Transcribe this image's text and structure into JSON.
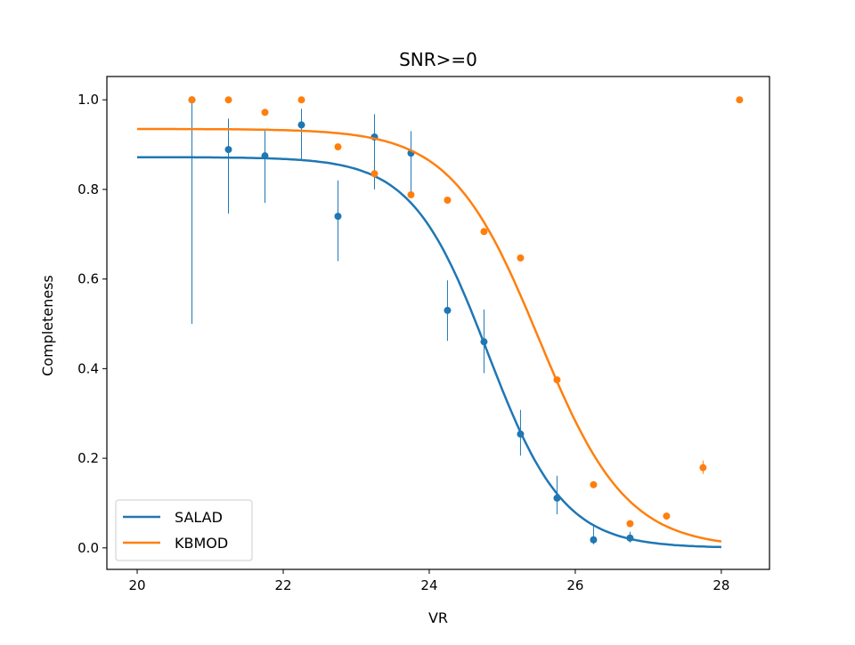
{
  "chart_data": {
    "type": "scatter",
    "title": "SNR>=0",
    "xlabel": "VR",
    "ylabel": "Completeness",
    "xlim": [
      19.585,
      28.66
    ],
    "ylim": [
      -0.048,
      1.052
    ],
    "xticks": [
      20,
      22,
      24,
      26,
      28
    ],
    "xtick_labels": [
      "20",
      "22",
      "24",
      "26",
      "28"
    ],
    "yticks": [
      0.0,
      0.2,
      0.4,
      0.6,
      0.8,
      1.0
    ],
    "ytick_labels": [
      "0.0",
      "0.2",
      "0.4",
      "0.6",
      "0.8",
      "1.0"
    ],
    "legend": {
      "placement": "lower-left",
      "entries": [
        "SALAD",
        "KBMOD"
      ]
    },
    "grid": false,
    "series": [
      {
        "name": "SALAD",
        "color": "#1f77b4",
        "x": [
          20.75,
          21.25,
          21.75,
          22.25,
          22.75,
          23.25,
          23.75,
          24.25,
          24.75,
          25.25,
          25.75,
          26.25,
          26.75
        ],
        "y": [
          1.0,
          0.889,
          0.875,
          0.944,
          0.74,
          0.917,
          0.881,
          0.53,
          0.46,
          0.254,
          0.111,
          0.018,
          0.022
        ],
        "err_low": [
          0.5,
          0.746,
          0.77,
          0.865,
          0.64,
          0.8,
          0.796,
          0.462,
          0.39,
          0.206,
          0.075,
          0.008,
          0.012
        ],
        "err_high": [
          1.0,
          0.958,
          0.935,
          0.98,
          0.82,
          0.968,
          0.93,
          0.597,
          0.532,
          0.308,
          0.161,
          0.048,
          0.036
        ],
        "fit": {
          "model": "logistic",
          "amplitude": 0.872,
          "midpoint": 24.8,
          "width": 0.52,
          "x_range": [
            20,
            28
          ]
        }
      },
      {
        "name": "KBMOD",
        "color": "#ff7f0e",
        "x": [
          20.75,
          21.25,
          21.75,
          22.25,
          22.75,
          23.25,
          23.75,
          24.25,
          24.75,
          25.25,
          25.75,
          26.25,
          26.75,
          27.25,
          27.75,
          28.25
        ],
        "y": [
          1.0,
          1.0,
          0.972,
          1.0,
          0.895,
          0.835,
          0.788,
          0.776,
          0.706,
          0.647,
          0.375,
          0.141,
          0.054,
          0.071,
          0.179,
          1.0
        ],
        "err_low": [
          1.0,
          1.0,
          0.972,
          1.0,
          0.895,
          0.835,
          0.788,
          0.776,
          0.706,
          0.647,
          0.375,
          0.141,
          0.054,
          0.071,
          0.165,
          1.0
        ],
        "err_high": [
          1.0,
          1.0,
          0.972,
          1.0,
          0.895,
          0.835,
          0.788,
          0.776,
          0.706,
          0.647,
          0.375,
          0.141,
          0.054,
          0.071,
          0.195,
          1.0
        ],
        "fit": {
          "model": "logistic",
          "amplitude": 0.935,
          "midpoint": 25.5,
          "width": 0.6,
          "x_range": [
            20,
            28
          ]
        }
      }
    ]
  }
}
